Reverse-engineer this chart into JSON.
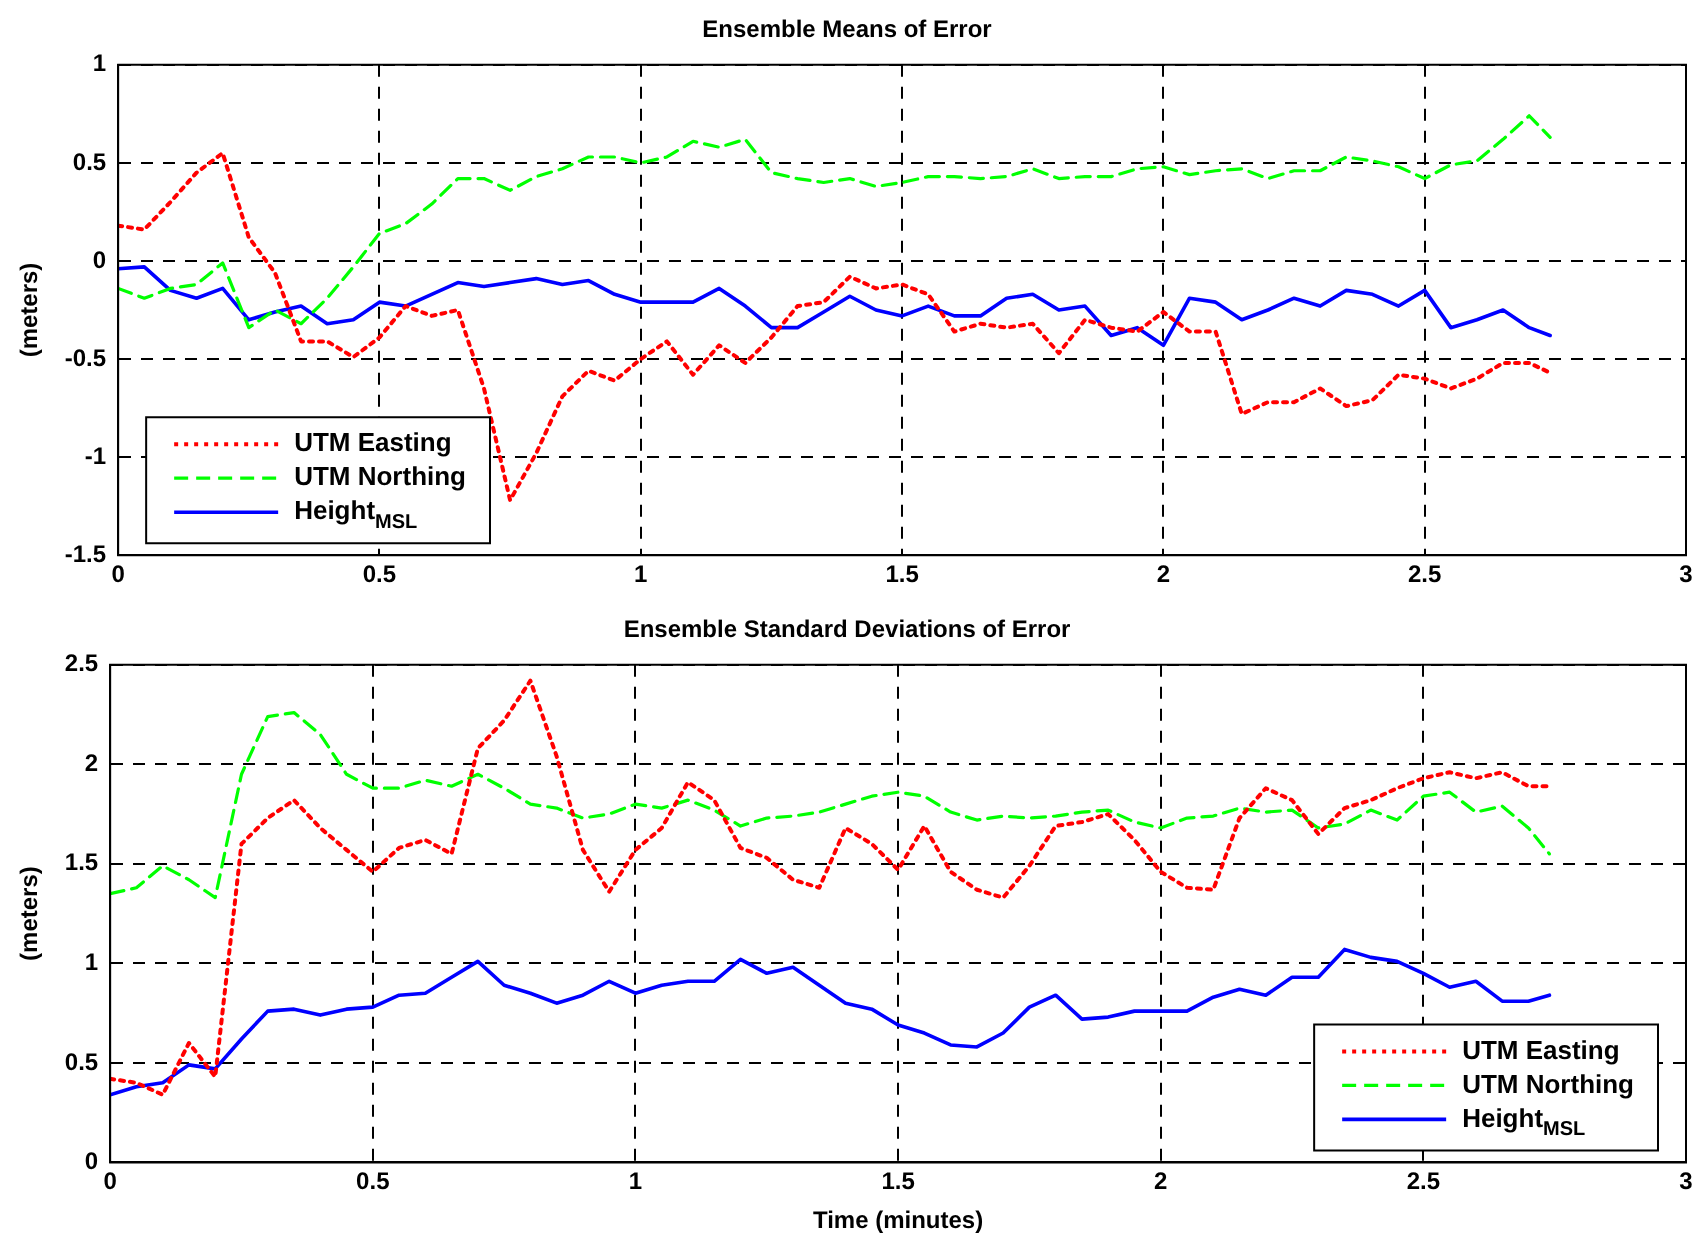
{
  "chart_data": [
    {
      "type": "line",
      "title": "Ensemble Means of Error",
      "ylabel": "(meters)",
      "x": [
        0,
        0.05,
        0.1,
        0.15,
        0.2,
        0.25,
        0.3,
        0.35,
        0.4,
        0.45,
        0.5,
        0.55,
        0.6,
        0.65,
        0.7,
        0.75,
        0.8,
        0.85,
        0.9,
        0.95,
        1,
        1.05,
        1.1,
        1.15,
        1.2,
        1.25,
        1.3,
        1.35,
        1.4,
        1.45,
        1.5,
        1.55,
        1.6,
        1.65,
        1.7,
        1.75,
        1.8,
        1.85,
        1.9,
        1.95,
        2,
        2.05,
        2.1,
        2.15,
        2.2,
        2.25,
        2.3,
        2.35,
        2.4,
        2.45,
        2.5,
        2.55,
        2.6,
        2.65,
        2.7,
        2.74
      ],
      "xlim": [
        0,
        3
      ],
      "xticks": [
        0,
        0.5,
        1,
        1.5,
        2,
        2.5,
        3
      ],
      "ylim": [
        -1.5,
        1
      ],
      "yticks": [
        -1.5,
        -1,
        -0.5,
        0,
        0.5,
        1
      ],
      "grid": true,
      "legend": "bottom left",
      "marker": "none",
      "series": [
        {
          "name": "UTM Easting",
          "color": "#ff0000",
          "line_style": "dotted",
          "values": [
            0.18,
            0.16,
            0.3,
            0.45,
            0.55,
            0.12,
            -0.06,
            -0.41,
            -0.41,
            -0.49,
            -0.39,
            -0.23,
            -0.28,
            -0.25,
            -0.65,
            -1.22,
            -0.98,
            -0.69,
            -0.56,
            -0.61,
            -0.5,
            -0.41,
            -0.58,
            -0.43,
            -0.52,
            -0.39,
            -0.23,
            -0.21,
            -0.08,
            -0.14,
            -0.12,
            -0.17,
            -0.36,
            -0.32,
            -0.34,
            -0.32,
            -0.47,
            -0.3,
            -0.34,
            -0.36,
            -0.26,
            -0.36,
            -0.36,
            -0.78,
            -0.72,
            -0.72,
            -0.65,
            -0.74,
            -0.71,
            -0.58,
            -0.6,
            -0.65,
            -0.6,
            -0.52,
            -0.52,
            -0.57
          ]
        },
        {
          "name": "UTM Northing",
          "color": "#00ff00",
          "line_style": "dashed",
          "values": [
            -0.14,
            -0.19,
            -0.14,
            -0.12,
            -0.01,
            -0.34,
            -0.25,
            -0.32,
            -0.19,
            -0.03,
            0.14,
            0.19,
            0.29,
            0.42,
            0.42,
            0.36,
            0.43,
            0.47,
            0.53,
            0.53,
            0.5,
            0.53,
            0.61,
            0.58,
            0.62,
            0.45,
            0.42,
            0.4,
            0.42,
            0.38,
            0.4,
            0.43,
            0.43,
            0.42,
            0.43,
            0.47,
            0.42,
            0.43,
            0.43,
            0.47,
            0.48,
            0.44,
            0.46,
            0.47,
            0.42,
            0.46,
            0.46,
            0.53,
            0.51,
            0.48,
            0.42,
            0.49,
            0.51,
            0.62,
            0.74,
            0.63
          ]
        },
        {
          "name": "Height$_{MSL}$",
          "color": "#0000ff",
          "line_style": "solid",
          "values": [
            -0.04,
            -0.03,
            -0.15,
            -0.19,
            -0.14,
            -0.3,
            -0.26,
            -0.23,
            -0.32,
            -0.3,
            -0.21,
            -0.23,
            -0.17,
            -0.11,
            -0.13,
            -0.11,
            -0.09,
            -0.12,
            -0.1,
            -0.17,
            -0.21,
            -0.21,
            -0.21,
            -0.14,
            -0.23,
            -0.34,
            -0.34,
            -0.26,
            -0.18,
            -0.25,
            -0.28,
            -0.23,
            -0.28,
            -0.28,
            -0.19,
            -0.17,
            -0.25,
            -0.23,
            -0.38,
            -0.34,
            -0.43,
            -0.19,
            -0.21,
            -0.3,
            -0.25,
            -0.19,
            -0.23,
            -0.15,
            -0.17,
            -0.23,
            -0.15,
            -0.34,
            -0.3,
            -0.25,
            -0.34,
            -0.38
          ]
        }
      ]
    },
    {
      "type": "line",
      "title": "Ensemble Standard Deviations of Error",
      "xlabel": "Time (minutes)",
      "ylabel": "(meters)",
      "x": [
        0,
        0.05,
        0.1,
        0.15,
        0.2,
        0.25,
        0.3,
        0.35,
        0.4,
        0.45,
        0.5,
        0.55,
        0.6,
        0.65,
        0.7,
        0.75,
        0.8,
        0.85,
        0.9,
        0.95,
        1,
        1.05,
        1.1,
        1.15,
        1.2,
        1.25,
        1.3,
        1.35,
        1.4,
        1.45,
        1.5,
        1.55,
        1.6,
        1.65,
        1.7,
        1.75,
        1.8,
        1.85,
        1.9,
        1.95,
        2,
        2.05,
        2.1,
        2.15,
        2.2,
        2.25,
        2.3,
        2.35,
        2.4,
        2.45,
        2.5,
        2.55,
        2.6,
        2.65,
        2.7,
        2.74
      ],
      "xlim": [
        0,
        3
      ],
      "xticks": [
        0,
        0.5,
        1,
        1.5,
        2,
        2.5,
        3
      ],
      "ylim": [
        0,
        2.5
      ],
      "yticks": [
        0,
        0.5,
        1,
        1.5,
        2,
        2.5
      ],
      "grid": true,
      "legend": "bottom right",
      "marker": "none",
      "series": [
        {
          "name": "UTM Easting",
          "color": "#ff0000",
          "line_style": "dotted",
          "values": [
            0.42,
            0.4,
            0.34,
            0.6,
            0.43,
            1.6,
            1.73,
            1.82,
            1.68,
            1.57,
            1.46,
            1.58,
            1.62,
            1.55,
            2.08,
            2.22,
            2.42,
            2.04,
            1.57,
            1.36,
            1.57,
            1.68,
            1.91,
            1.82,
            1.58,
            1.53,
            1.42,
            1.38,
            1.68,
            1.6,
            1.47,
            1.69,
            1.46,
            1.37,
            1.33,
            1.49,
            1.69,
            1.71,
            1.75,
            1.62,
            1.46,
            1.38,
            1.37,
            1.73,
            1.88,
            1.82,
            1.65,
            1.78,
            1.82,
            1.88,
            1.93,
            1.96,
            1.93,
            1.96,
            1.89,
            1.89
          ]
        },
        {
          "name": "UTM Northing",
          "color": "#00ff00",
          "line_style": "dashed",
          "values": [
            1.35,
            1.38,
            1.49,
            1.42,
            1.33,
            1.95,
            2.24,
            2.26,
            2.15,
            1.95,
            1.88,
            1.88,
            1.92,
            1.89,
            1.95,
            1.88,
            1.8,
            1.78,
            1.73,
            1.75,
            1.8,
            1.78,
            1.82,
            1.77,
            1.69,
            1.73,
            1.74,
            1.76,
            1.8,
            1.84,
            1.86,
            1.84,
            1.76,
            1.72,
            1.74,
            1.73,
            1.74,
            1.76,
            1.77,
            1.71,
            1.68,
            1.73,
            1.74,
            1.78,
            1.76,
            1.77,
            1.68,
            1.7,
            1.77,
            1.72,
            1.84,
            1.86,
            1.76,
            1.79,
            1.68,
            1.55
          ]
        },
        {
          "name": "Height$_{MSL}$",
          "color": "#0000ff",
          "line_style": "solid",
          "values": [
            0.34,
            0.38,
            0.4,
            0.49,
            0.47,
            0.62,
            0.76,
            0.77,
            0.74,
            0.77,
            0.78,
            0.84,
            0.85,
            0.93,
            1.01,
            0.89,
            0.85,
            0.8,
            0.84,
            0.91,
            0.85,
            0.89,
            0.91,
            0.91,
            1.02,
            0.95,
            0.98,
            0.89,
            0.8,
            0.77,
            0.69,
            0.65,
            0.59,
            0.58,
            0.65,
            0.78,
            0.84,
            0.72,
            0.73,
            0.76,
            0.76,
            0.76,
            0.83,
            0.87,
            0.84,
            0.93,
            0.93,
            1.07,
            1.03,
            1.01,
            0.95,
            0.88,
            0.91,
            0.81,
            0.81,
            0.84
          ]
        }
      ]
    }
  ]
}
